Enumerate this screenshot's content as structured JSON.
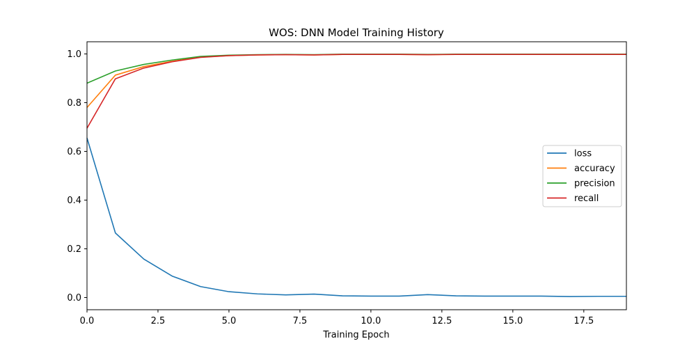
{
  "chart_data": {
    "type": "line",
    "title": "WOS: DNN Model Training History",
    "xlabel": "Training Epoch",
    "ylabel": "",
    "xlim": [
      0,
      19
    ],
    "ylim": [
      -0.05,
      1.05
    ],
    "x": [
      0,
      1,
      2,
      3,
      4,
      5,
      6,
      7,
      8,
      9,
      10,
      11,
      12,
      13,
      14,
      15,
      16,
      17,
      18,
      19
    ],
    "xticks": [
      0.0,
      2.5,
      5.0,
      7.5,
      10.0,
      12.5,
      15.0,
      17.5
    ],
    "xtick_labels": [
      "0.0",
      "2.5",
      "5.0",
      "7.5",
      "10.0",
      "12.5",
      "15.0",
      "17.5"
    ],
    "yticks": [
      0.0,
      0.2,
      0.4,
      0.6,
      0.8,
      1.0
    ],
    "ytick_labels": [
      "0.0",
      "0.2",
      "0.4",
      "0.6",
      "0.8",
      "1.0"
    ],
    "grid": false,
    "legend_position": "center-right",
    "series": [
      {
        "name": "loss",
        "color": "#1f77b4",
        "values": [
          0.655,
          0.265,
          0.158,
          0.088,
          0.045,
          0.024,
          0.015,
          0.011,
          0.014,
          0.007,
          0.006,
          0.006,
          0.012,
          0.007,
          0.006,
          0.006,
          0.006,
          0.004,
          0.005,
          0.005
        ]
      },
      {
        "name": "accuracy",
        "color": "#ff7f0e",
        "values": [
          0.78,
          0.913,
          0.948,
          0.97,
          0.987,
          0.993,
          0.996,
          0.997,
          0.996,
          0.998,
          0.998,
          0.998,
          0.997,
          0.998,
          0.998,
          0.998,
          0.998,
          0.998,
          0.998,
          0.998
        ]
      },
      {
        "name": "precision",
        "color": "#2ca02c",
        "values": [
          0.88,
          0.93,
          0.957,
          0.975,
          0.99,
          0.995,
          0.997,
          0.998,
          0.997,
          0.999,
          0.999,
          0.999,
          0.998,
          0.999,
          0.999,
          0.999,
          0.999,
          0.999,
          0.999,
          0.999
        ]
      },
      {
        "name": "recall",
        "color": "#d62728",
        "values": [
          0.695,
          0.898,
          0.942,
          0.968,
          0.986,
          0.993,
          0.996,
          0.997,
          0.996,
          0.998,
          0.998,
          0.998,
          0.997,
          0.998,
          0.998,
          0.998,
          0.998,
          0.998,
          0.998,
          0.998
        ]
      }
    ]
  }
}
